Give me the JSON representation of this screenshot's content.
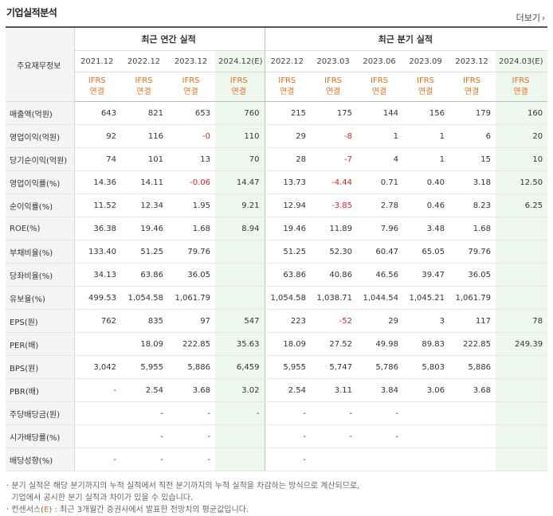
{
  "title": "기업실적분석",
  "more_label": "더보기",
  "header": {
    "label": "주요재무정보",
    "annual": "최근 연간 실적",
    "quarterly": "최근 분기 실적",
    "periods": [
      "2021.12",
      "2022.12",
      "2023.12",
      "2024.12(E)",
      "2022.12",
      "2023.03",
      "2023.06",
      "2023.09",
      "2023.12",
      "2024.03(E)"
    ],
    "ifrs_top": "IFRS",
    "ifrs_bottom": "연결"
  },
  "rows": [
    {
      "label": "매출액(억원)",
      "values": [
        "643",
        "821",
        "653",
        "760",
        "215",
        "175",
        "144",
        "156",
        "179",
        "160"
      ]
    },
    {
      "label": "영업이익(억원)",
      "values": [
        "92",
        "116",
        "-0",
        "110",
        "29",
        "-8",
        "1",
        "1",
        "6",
        "20"
      ]
    },
    {
      "label": "당기순이익(억원)",
      "values": [
        "74",
        "101",
        "13",
        "70",
        "28",
        "-7",
        "4",
        "1",
        "15",
        "10"
      ]
    },
    {
      "label": "영업이익률(%)",
      "values": [
        "14.36",
        "14.11",
        "-0.06",
        "14.47",
        "13.73",
        "-4.44",
        "0.71",
        "0.40",
        "3.18",
        "12.50"
      ]
    },
    {
      "label": "순이익률(%)",
      "values": [
        "11.52",
        "12.34",
        "1.95",
        "9.21",
        "12.94",
        "-3.85",
        "2.78",
        "0.46",
        "8.23",
        "6.25"
      ]
    },
    {
      "label": "ROE(%)",
      "values": [
        "36.38",
        "19.46",
        "1.68",
        "8.94",
        "19.46",
        "11.89",
        "7.96",
        "3.48",
        "1.68",
        ""
      ]
    },
    {
      "label": "부채비율(%)",
      "values": [
        "133.40",
        "51.25",
        "79.76",
        "",
        "51.25",
        "52.30",
        "60.47",
        "65.05",
        "79.76",
        ""
      ]
    },
    {
      "label": "당좌비율(%)",
      "values": [
        "34.13",
        "63.86",
        "36.05",
        "",
        "63.86",
        "40.86",
        "46.56",
        "39.47",
        "36.05",
        ""
      ]
    },
    {
      "label": "유보율(%)",
      "values": [
        "499.53",
        "1,054.58",
        "1,061.79",
        "",
        "1,054.58",
        "1,038.71",
        "1,044.54",
        "1,045.21",
        "1,061.79",
        ""
      ]
    },
    {
      "label": "EPS(원)",
      "values": [
        "762",
        "835",
        "97",
        "547",
        "223",
        "-52",
        "29",
        "3",
        "117",
        "78"
      ]
    },
    {
      "label": "PER(배)",
      "values": [
        "",
        "18.09",
        "222.85",
        "35.63",
        "18.09",
        "27.52",
        "49.98",
        "89.83",
        "222.85",
        "249.39"
      ]
    },
    {
      "label": "BPS(원)",
      "values": [
        "3,042",
        "5,955",
        "5,886",
        "6,459",
        "5,955",
        "5,747",
        "5,786",
        "5,803",
        "5,886",
        ""
      ]
    },
    {
      "label": "PBR(배)",
      "values": [
        "-",
        "2.54",
        "3.68",
        "3.02",
        "2.54",
        "3.11",
        "3.84",
        "3.06",
        "3.68",
        ""
      ]
    },
    {
      "label": "주당배당금(원)",
      "values": [
        "",
        "-",
        "-",
        "-",
        "-",
        "-",
        "-",
        "",
        "",
        ""
      ]
    },
    {
      "label": "시가배당률(%)",
      "values": [
        "",
        "-",
        "-",
        "",
        "-",
        "-",
        "-",
        "",
        "",
        ""
      ]
    },
    {
      "label": "배당성향(%)",
      "values": [
        "-",
        "-",
        "-",
        "",
        "-",
        "",
        "",
        "",
        "",
        ""
      ]
    }
  ],
  "notes": {
    "line1": "분기 실적은 해당 분기까지의 누적 실적에서 직전 분기까지의 누적 실적을 차감하는 방식으로 계산되므로,",
    "line2": "기업에서 공시한 분기 실적과 차이가 있을 수 있습니다.",
    "line3_prefix": "컨센서스(",
    "line3_e": "E",
    "line3_suffix": ") : 최근 3개월간 증권사에서 발표한 전망치의 평균값입니다."
  }
}
